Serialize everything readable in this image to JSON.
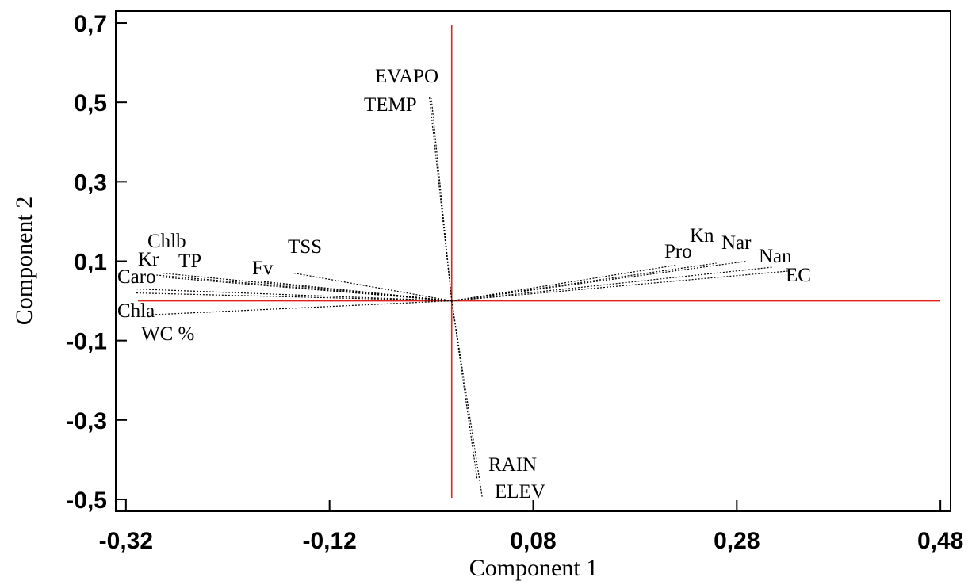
{
  "chart_data": {
    "type": "biplot",
    "xlabel": "Component 1",
    "ylabel": "Component 2",
    "xlim": [
      -0.33,
      0.49
    ],
    "ylim": [
      -0.53,
      0.73
    ],
    "x_ticks": [
      -0.32,
      -0.12,
      0.08,
      0.28,
      0.48
    ],
    "x_tick_labels": [
      "-0,32",
      "-0,12",
      "0,08",
      "0,28",
      "0,48"
    ],
    "y_ticks": [
      -0.5,
      -0.3,
      -0.1,
      0.1,
      0.3,
      0.5,
      0.7
    ],
    "y_tick_labels": [
      "-0,5",
      "-0,3",
      "-0,1",
      "0,1",
      "0,3",
      "0,5",
      "0,7"
    ],
    "reference_lines": {
      "x": 0.0,
      "y": 0.0,
      "color": "#e0201a"
    },
    "vectors": [
      {
        "name": "EVAPO",
        "x": -0.022,
        "y": 0.515
      },
      {
        "name": "TEMP",
        "x": -0.02,
        "y": 0.51
      },
      {
        "name": "TSS",
        "x": -0.155,
        "y": 0.07
      },
      {
        "name": "Fv",
        "x": -0.19,
        "y": 0.05
      },
      {
        "name": "Chlb",
        "x": -0.285,
        "y": 0.07
      },
      {
        "name": "Kr",
        "x": -0.29,
        "y": 0.065
      },
      {
        "name": "TP",
        "x": -0.285,
        "y": 0.06
      },
      {
        "name": "Caro",
        "x": -0.31,
        "y": 0.03
      },
      {
        "name": "Chla",
        "x": -0.295,
        "y": -0.035
      },
      {
        "name": "WC %",
        "x": -0.31,
        "y": 0.02
      },
      {
        "name": "Pro",
        "x": 0.22,
        "y": 0.09
      },
      {
        "name": "Kn",
        "x": 0.26,
        "y": 0.095
      },
      {
        "name": "Nar",
        "x": 0.29,
        "y": 0.1
      },
      {
        "name": "Nan",
        "x": 0.315,
        "y": 0.085
      },
      {
        "name": "EC",
        "x": 0.33,
        "y": 0.075
      },
      {
        "name": "RAIN",
        "x": 0.025,
        "y": -0.45
      },
      {
        "name": "ELEV",
        "x": 0.03,
        "y": -0.495
      }
    ]
  }
}
